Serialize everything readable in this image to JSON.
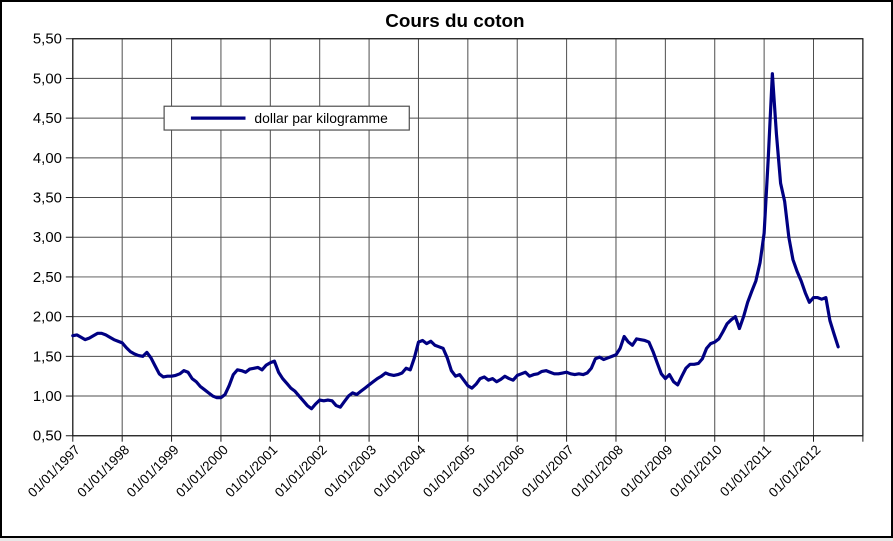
{
  "chart_data": {
    "type": "line",
    "title": "Cours du coton",
    "legend_label": "dollar par kilogramme",
    "legend_position": "top-center-inside",
    "line_color": "#000082",
    "grid": true,
    "gridline_color": "#4d4d4d",
    "frame_color": "#1a1a1a",
    "ylim": [
      0.5,
      5.5
    ],
    "y_gridline_step": 0.5,
    "y_tick_labels": [
      "5,50",
      "5,00",
      "4,50",
      "4,00",
      "3,50",
      "3,00",
      "2,50",
      "2,00",
      "1,50",
      "1,00",
      "0,50"
    ],
    "x_tick_labels": [
      "01/01/1997",
      "01/01/1998",
      "01/01/1999",
      "01/01/2000",
      "01/01/2001",
      "01/01/2002",
      "01/01/2003",
      "01/01/2004",
      "01/01/2005",
      "01/01/2006",
      "01/01/2007",
      "01/01/2008",
      "01/01/2009",
      "01/01/2010",
      "01/01/2011",
      "01/01/2012"
    ],
    "x_start": "01/1997",
    "x_frequency": "monthly",
    "values": [
      1.76,
      1.77,
      1.74,
      1.71,
      1.73,
      1.76,
      1.79,
      1.79,
      1.77,
      1.74,
      1.71,
      1.69,
      1.67,
      1.61,
      1.56,
      1.53,
      1.51,
      1.5,
      1.55,
      1.48,
      1.38,
      1.28,
      1.24,
      1.25,
      1.25,
      1.26,
      1.28,
      1.32,
      1.3,
      1.22,
      1.18,
      1.12,
      1.08,
      1.04,
      1.0,
      0.98,
      0.98,
      1.02,
      1.13,
      1.27,
      1.33,
      1.32,
      1.3,
      1.34,
      1.35,
      1.36,
      1.33,
      1.39,
      1.42,
      1.44,
      1.3,
      1.22,
      1.16,
      1.1,
      1.06,
      1.0,
      0.94,
      0.88,
      0.84,
      0.9,
      0.95,
      0.94,
      0.95,
      0.94,
      0.88,
      0.86,
      0.93,
      1.0,
      1.04,
      1.02,
      1.06,
      1.1,
      1.14,
      1.18,
      1.22,
      1.25,
      1.29,
      1.27,
      1.26,
      1.27,
      1.29,
      1.35,
      1.33,
      1.48,
      1.68,
      1.7,
      1.66,
      1.69,
      1.64,
      1.62,
      1.6,
      1.48,
      1.32,
      1.25,
      1.27,
      1.2,
      1.13,
      1.1,
      1.15,
      1.22,
      1.24,
      1.2,
      1.22,
      1.18,
      1.21,
      1.25,
      1.22,
      1.2,
      1.26,
      1.28,
      1.3,
      1.25,
      1.27,
      1.28,
      1.31,
      1.32,
      1.3,
      1.28,
      1.28,
      1.29,
      1.3,
      1.28,
      1.27,
      1.28,
      1.27,
      1.29,
      1.35,
      1.47,
      1.49,
      1.46,
      1.48,
      1.5,
      1.52,
      1.6,
      1.75,
      1.68,
      1.64,
      1.72,
      1.71,
      1.7,
      1.68,
      1.56,
      1.42,
      1.28,
      1.22,
      1.27,
      1.18,
      1.14,
      1.25,
      1.35,
      1.4,
      1.4,
      1.41,
      1.47,
      1.6,
      1.66,
      1.68,
      1.72,
      1.81,
      1.91,
      1.96,
      2.0,
      1.85,
      2.0,
      2.18,
      2.32,
      2.45,
      2.68,
      3.05,
      3.98,
      5.06,
      4.3,
      3.68,
      3.45,
      3.0,
      2.72,
      2.57,
      2.45,
      2.3,
      2.18,
      2.24,
      2.24,
      2.22,
      2.24,
      1.95,
      1.78,
      1.62
    ]
  }
}
